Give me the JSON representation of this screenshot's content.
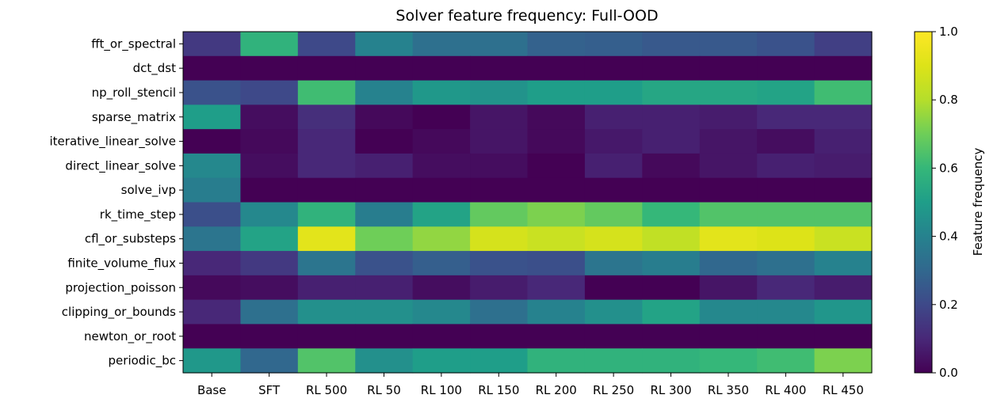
{
  "chart_data": {
    "type": "heatmap",
    "title": "Solver feature frequency: Full-OOD",
    "x_categories": [
      "Base",
      "SFT",
      "RL 500",
      "RL 50",
      "RL 100",
      "RL 150",
      "RL 200",
      "RL 250",
      "RL 300",
      "RL 350",
      "RL 400",
      "RL 450"
    ],
    "y_categories": [
      "fft_or_spectral",
      "dct_dst",
      "np_roll_stencil",
      "sparse_matrix",
      "iterative_linear_solve",
      "direct_linear_solve",
      "solve_ivp",
      "rk_time_step",
      "cfl_or_substeps",
      "finite_volume_flux",
      "projection_poisson",
      "clipping_or_bounds",
      "newton_or_root",
      "periodic_bc"
    ],
    "values": [
      [
        0.15,
        0.58,
        0.2,
        0.4,
        0.33,
        0.33,
        0.28,
        0.27,
        0.25,
        0.25,
        0.23,
        0.17
      ],
      [
        0.0,
        0.0,
        0.0,
        0.0,
        0.0,
        0.0,
        0.0,
        0.0,
        0.0,
        0.0,
        0.0,
        0.0
      ],
      [
        0.23,
        0.2,
        0.62,
        0.4,
        0.48,
        0.46,
        0.5,
        0.5,
        0.53,
        0.53,
        0.52,
        0.62
      ],
      [
        0.5,
        0.03,
        0.12,
        0.02,
        0.0,
        0.05,
        0.02,
        0.08,
        0.08,
        0.07,
        0.1,
        0.1
      ],
      [
        0.0,
        0.02,
        0.1,
        0.0,
        0.02,
        0.05,
        0.02,
        0.06,
        0.08,
        0.05,
        0.03,
        0.08
      ],
      [
        0.42,
        0.03,
        0.1,
        0.08,
        0.03,
        0.03,
        0.0,
        0.08,
        0.02,
        0.05,
        0.08,
        0.07
      ],
      [
        0.38,
        0.0,
        0.0,
        0.0,
        0.0,
        0.0,
        0.0,
        0.0,
        0.0,
        0.0,
        0.0,
        0.0
      ],
      [
        0.22,
        0.42,
        0.58,
        0.38,
        0.52,
        0.68,
        0.72,
        0.68,
        0.6,
        0.65,
        0.65,
        0.65
      ],
      [
        0.35,
        0.52,
        0.92,
        0.7,
        0.75,
        0.88,
        0.85,
        0.88,
        0.83,
        0.92,
        0.9,
        0.85
      ],
      [
        0.1,
        0.15,
        0.35,
        0.23,
        0.27,
        0.23,
        0.22,
        0.35,
        0.38,
        0.3,
        0.33,
        0.4
      ],
      [
        0.02,
        0.03,
        0.08,
        0.08,
        0.03,
        0.07,
        0.1,
        0.0,
        0.0,
        0.05,
        0.1,
        0.07
      ],
      [
        0.1,
        0.33,
        0.45,
        0.45,
        0.42,
        0.33,
        0.4,
        0.45,
        0.52,
        0.42,
        0.42,
        0.47
      ],
      [
        0.0,
        0.0,
        0.0,
        0.0,
        0.0,
        0.0,
        0.0,
        0.0,
        0.0,
        0.0,
        0.0,
        0.0
      ],
      [
        0.48,
        0.3,
        0.65,
        0.45,
        0.5,
        0.5,
        0.58,
        0.58,
        0.58,
        0.6,
        0.62,
        0.72
      ]
    ],
    "colorbar": {
      "label": "Feature frequency",
      "range": [
        0.0,
        1.0
      ],
      "ticks": [
        "0.0",
        "0.2",
        "0.4",
        "0.6",
        "0.8",
        "1.0"
      ],
      "colormap": "viridis"
    }
  }
}
